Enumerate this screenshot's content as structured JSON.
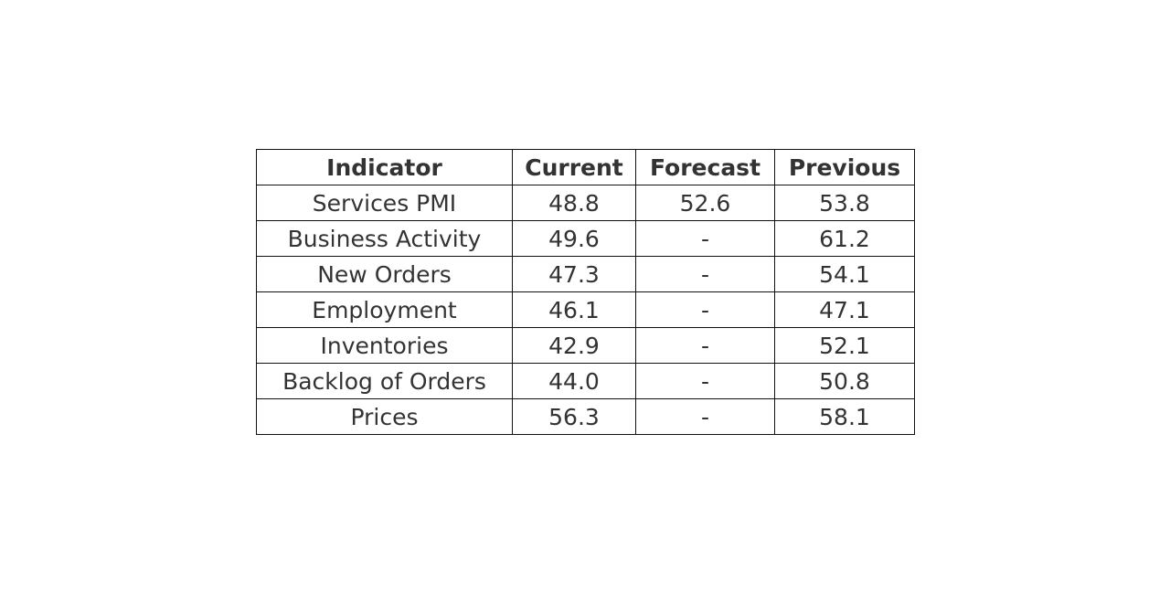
{
  "table": {
    "header": [
      "Indicator",
      "Current",
      "Forecast",
      "Previous"
    ],
    "rows": [
      [
        "Services PMI",
        "48.8",
        "52.6",
        "53.8"
      ],
      [
        "Business Activity",
        "49.6",
        "-",
        "61.2"
      ],
      [
        "New Orders",
        "47.3",
        "-",
        "54.1"
      ],
      [
        "Employment",
        "46.1",
        "-",
        "47.1"
      ],
      [
        "Inventories",
        "42.9",
        "-",
        "52.1"
      ],
      [
        "Backlog of Orders",
        "44.0",
        "-",
        "50.8"
      ],
      [
        "Prices",
        "56.3",
        "-",
        "58.1"
      ]
    ]
  }
}
